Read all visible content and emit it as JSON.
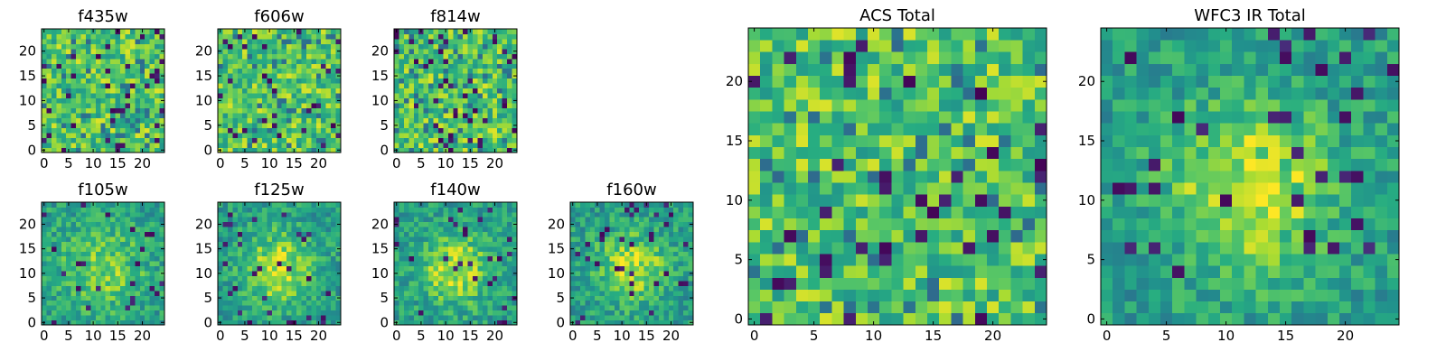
{
  "chart_data": [
    {
      "type": "heatmap",
      "title": "f435w",
      "xlim": [
        0,
        24
      ],
      "ylim": [
        0,
        24
      ],
      "xticks": [
        0,
        5,
        10,
        15,
        20
      ],
      "yticks": [
        0,
        5,
        10,
        15,
        20
      ],
      "grid": false,
      "colormap": "viridis",
      "peak": "none"
    },
    {
      "type": "heatmap",
      "title": "f606w",
      "xlim": [
        0,
        24
      ],
      "ylim": [
        0,
        24
      ],
      "xticks": [
        0,
        5,
        10,
        15,
        20
      ],
      "yticks": [
        0,
        5,
        10,
        15,
        20
      ],
      "grid": false,
      "colormap": "viridis",
      "peak": "none"
    },
    {
      "type": "heatmap",
      "title": "f814w",
      "xlim": [
        0,
        24
      ],
      "ylim": [
        0,
        24
      ],
      "xticks": [
        0,
        5,
        10,
        15,
        20
      ],
      "yticks": [
        0,
        5,
        10,
        15,
        20
      ],
      "grid": false,
      "colormap": "viridis",
      "peak": "none"
    },
    {
      "type": "heatmap",
      "title": "f105w",
      "xlim": [
        0,
        24
      ],
      "ylim": [
        0,
        24
      ],
      "xticks": [
        0,
        5,
        10,
        15,
        20
      ],
      "yticks": [
        0,
        5,
        10,
        15,
        20
      ],
      "grid": false,
      "colormap": "viridis",
      "peak": "weak central source"
    },
    {
      "type": "heatmap",
      "title": "f125w",
      "xlim": [
        0,
        24
      ],
      "ylim": [
        0,
        24
      ],
      "xticks": [
        0,
        5,
        10,
        15,
        20
      ],
      "yticks": [
        0,
        5,
        10,
        15,
        20
      ],
      "grid": false,
      "colormap": "viridis",
      "peak": "central source"
    },
    {
      "type": "heatmap",
      "title": "f140w",
      "xlim": [
        0,
        24
      ],
      "ylim": [
        0,
        24
      ],
      "xticks": [
        0,
        5,
        10,
        15,
        20
      ],
      "yticks": [
        0,
        5,
        10,
        15,
        20
      ],
      "grid": false,
      "colormap": "viridis",
      "peak": "central source"
    },
    {
      "type": "heatmap",
      "title": "f160w",
      "xlim": [
        0,
        24
      ],
      "ylim": [
        0,
        24
      ],
      "xticks": [
        0,
        5,
        10,
        15,
        20
      ],
      "yticks": [
        0,
        5,
        10,
        15,
        20
      ],
      "grid": false,
      "colormap": "viridis",
      "peak": "central source"
    },
    {
      "type": "heatmap",
      "title": "ACS Total",
      "xlim": [
        0,
        24
      ],
      "ylim": [
        0,
        24
      ],
      "xticks": [
        0,
        5,
        10,
        15,
        20
      ],
      "yticks": [
        0,
        5,
        10,
        15,
        20
      ],
      "grid": false,
      "colormap": "viridis",
      "peak": "none"
    },
    {
      "type": "heatmap",
      "title": "WFC3 IR Total",
      "xlim": [
        0,
        24
      ],
      "ylim": [
        0,
        24
      ],
      "xticks": [
        0,
        5,
        10,
        15,
        20
      ],
      "yticks": [
        0,
        5,
        10,
        15,
        20
      ],
      "grid": false,
      "colormap": "viridis",
      "peak": "central source"
    }
  ]
}
